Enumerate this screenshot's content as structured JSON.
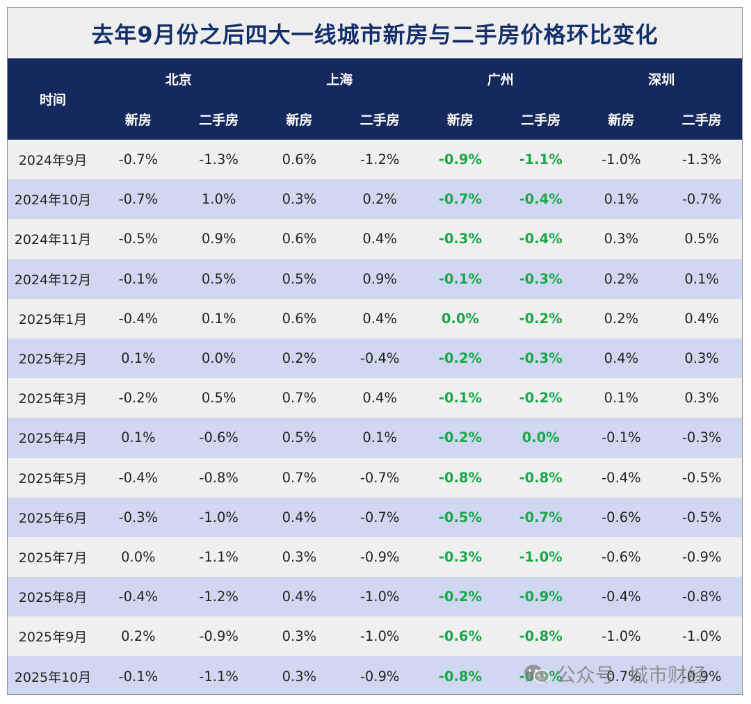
{
  "chart_data": {
    "type": "table",
    "title": "去年9月份之后四大一线城市新房与二手房价格环比变化",
    "time_header": "时间",
    "cities": [
      "北京",
      "上海",
      "广州",
      "深圳"
    ],
    "sub_headers": [
      "新房",
      "二手房"
    ],
    "highlight_color": "#1aa64a",
    "highlight_city": "广州",
    "rows": [
      {
        "date": "2024年9月",
        "values": [
          "-0.7%",
          "-1.3%",
          "0.6%",
          "-1.2%",
          "-0.9%",
          "-1.1%",
          "-1.0%",
          "-1.3%"
        ]
      },
      {
        "date": "2024年10月",
        "values": [
          "-0.7%",
          "1.0%",
          "0.3%",
          "0.2%",
          "-0.7%",
          "-0.4%",
          "0.1%",
          "-0.7%"
        ]
      },
      {
        "date": "2024年11月",
        "values": [
          "-0.5%",
          "0.9%",
          "0.6%",
          "0.4%",
          "-0.3%",
          "-0.4%",
          "0.3%",
          "0.5%"
        ]
      },
      {
        "date": "2024年12月",
        "values": [
          "-0.1%",
          "0.5%",
          "0.5%",
          "0.9%",
          "-0.1%",
          "-0.3%",
          "0.2%",
          "0.1%"
        ]
      },
      {
        "date": "2025年1月",
        "values": [
          "-0.4%",
          "0.1%",
          "0.6%",
          "0.4%",
          "0.0%",
          "-0.2%",
          "0.2%",
          "0.4%"
        ]
      },
      {
        "date": "2025年2月",
        "values": [
          "0.1%",
          "0.0%",
          "0.2%",
          "-0.4%",
          "-0.2%",
          "-0.3%",
          "0.4%",
          "0.3%"
        ]
      },
      {
        "date": "2025年3月",
        "values": [
          "-0.2%",
          "0.5%",
          "0.7%",
          "0.4%",
          "-0.1%",
          "-0.2%",
          "0.1%",
          "0.3%"
        ]
      },
      {
        "date": "2025年4月",
        "values": [
          "0.1%",
          "-0.6%",
          "0.5%",
          "0.1%",
          "-0.2%",
          "0.0%",
          "-0.1%",
          "-0.3%"
        ]
      },
      {
        "date": "2025年5月",
        "values": [
          "-0.4%",
          "-0.8%",
          "0.7%",
          "-0.7%",
          "-0.8%",
          "-0.8%",
          "-0.4%",
          "-0.5%"
        ]
      },
      {
        "date": "2025年6月",
        "values": [
          "-0.3%",
          "-1.0%",
          "0.4%",
          "-0.7%",
          "-0.5%",
          "-0.7%",
          "-0.6%",
          "-0.5%"
        ]
      },
      {
        "date": "2025年7月",
        "values": [
          "0.0%",
          "-1.1%",
          "0.3%",
          "-0.9%",
          "-0.3%",
          "-1.0%",
          "-0.6%",
          "-0.9%"
        ]
      },
      {
        "date": "2025年8月",
        "values": [
          "-0.4%",
          "-1.2%",
          "0.4%",
          "-1.0%",
          "-0.2%",
          "-0.9%",
          "-0.4%",
          "-0.8%"
        ]
      },
      {
        "date": "2025年9月",
        "values": [
          "0.2%",
          "-0.9%",
          "0.3%",
          "-1.0%",
          "-0.6%",
          "-0.8%",
          "-1.0%",
          "-1.0%"
        ]
      },
      {
        "date": "2025年10月",
        "values": [
          "-0.1%",
          "-1.1%",
          "0.3%",
          "-0.9%",
          "-0.8%",
          "-0.9%",
          "-0.7%",
          "-0.9%"
        ]
      }
    ]
  },
  "watermark": {
    "icon": "wechat-icon",
    "account": "公众号",
    "brand": "城市财经"
  }
}
